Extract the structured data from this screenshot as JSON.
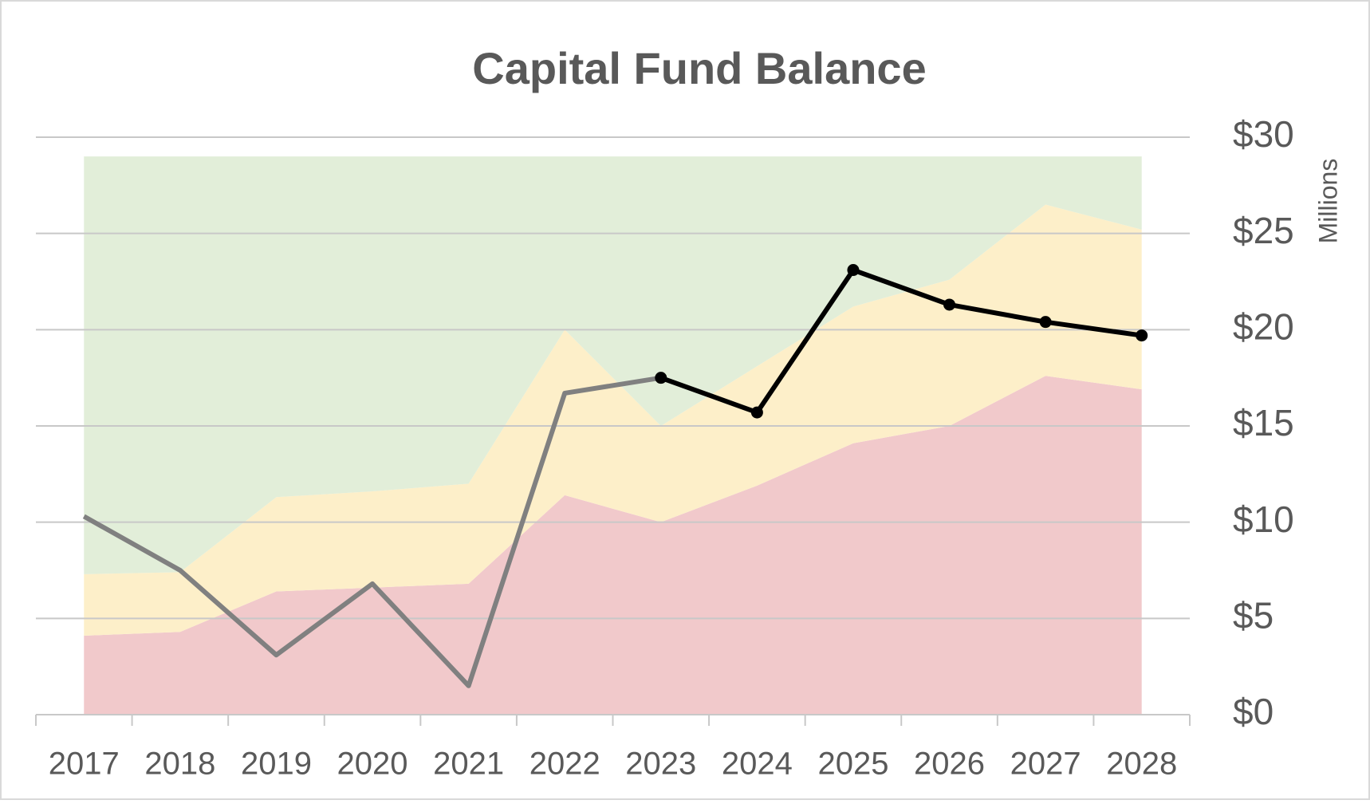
{
  "chart_data": {
    "type": "area",
    "title": "Capital Fund Balance",
    "y_label": "Millions",
    "categories": [
      "2017",
      "2018",
      "2019",
      "2020",
      "2021",
      "2022",
      "2023",
      "2024",
      "2025",
      "2026",
      "2027",
      "2028"
    ],
    "series": [
      {
        "type": "area",
        "color": "#f1c9cb",
        "values": [
          4.1,
          4.3,
          6.4,
          6.6,
          6.8,
          11.4,
          10.0,
          11.9,
          14.1,
          15.0,
          17.6,
          16.9
        ]
      },
      {
        "type": "area",
        "color": "#fdefc9",
        "values": [
          3.2,
          3.1,
          4.9,
          5.0,
          5.2,
          8.6,
          5.0,
          6.2,
          7.1,
          7.6,
          8.9,
          8.3
        ]
      },
      {
        "type": "area",
        "color": "#e2eed9",
        "values": [
          21.7,
          21.6,
          17.7,
          17.4,
          17.0,
          9.0,
          14.0,
          10.9,
          7.8,
          6.4,
          2.5,
          3.8
        ]
      },
      {
        "type": "line",
        "color": "#808080",
        "markers": false,
        "values": [
          10.3,
          7.5,
          3.1,
          6.8,
          1.5,
          16.7,
          17.5,
          null,
          null,
          null,
          null,
          null
        ]
      },
      {
        "type": "line",
        "color": "#000000",
        "markers": true,
        "values": [
          null,
          null,
          null,
          null,
          null,
          null,
          17.5,
          15.7,
          23.1,
          21.3,
          20.4,
          19.7
        ]
      }
    ],
    "stacked": true,
    "ylim": [
      0,
      30
    ],
    "yticks": [
      {
        "value": 0,
        "label": "$0"
      },
      {
        "value": 5,
        "label": "$5"
      },
      {
        "value": 10,
        "label": "$10"
      },
      {
        "value": 15,
        "label": "$15"
      },
      {
        "value": 20,
        "label": "$20"
      },
      {
        "value": 25,
        "label": "$25"
      },
      {
        "value": 30,
        "label": "$30"
      }
    ],
    "y_axis_side": "right",
    "grid": true
  }
}
